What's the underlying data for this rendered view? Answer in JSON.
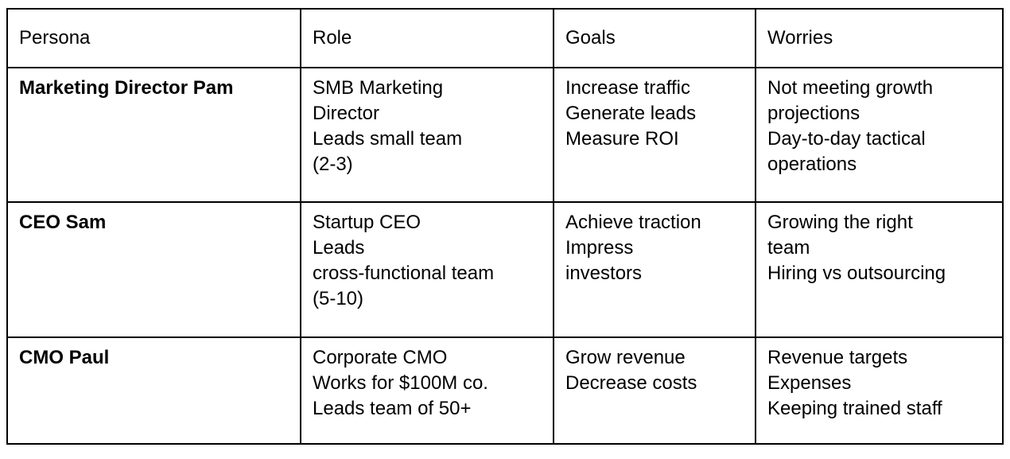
{
  "table": {
    "headers": [
      "Persona",
      "Role",
      "Goals",
      "Worries"
    ],
    "rows": [
      {
        "persona": "Marketing Director Pam",
        "role": [
          "SMB Marketing",
          "Director",
          "Leads small team",
          "(2-3)"
        ],
        "goals": [
          "Increase traffic",
          "Generate leads",
          "Measure ROI"
        ],
        "worries": [
          "Not meeting growth",
          "projections",
          "Day-to-day tactical",
          "operations"
        ]
      },
      {
        "persona": "CEO Sam",
        "role": [
          "Startup CEO",
          "Leads",
          "cross-functional team",
          "(5-10)"
        ],
        "goals": [
          "Achieve traction",
          "Impress",
          "investors"
        ],
        "worries": [
          "Growing the right",
          "team",
          "Hiring vs outsourcing"
        ]
      },
      {
        "persona": "CMO Paul",
        "role": [
          "Corporate CMO",
          "Works for $100M co.",
          "Leads team of 50+"
        ],
        "goals": [
          "Grow revenue",
          "Decrease costs"
        ],
        "worries": [
          "Revenue targets",
          "Expenses",
          "Keeping trained staff"
        ]
      }
    ]
  }
}
